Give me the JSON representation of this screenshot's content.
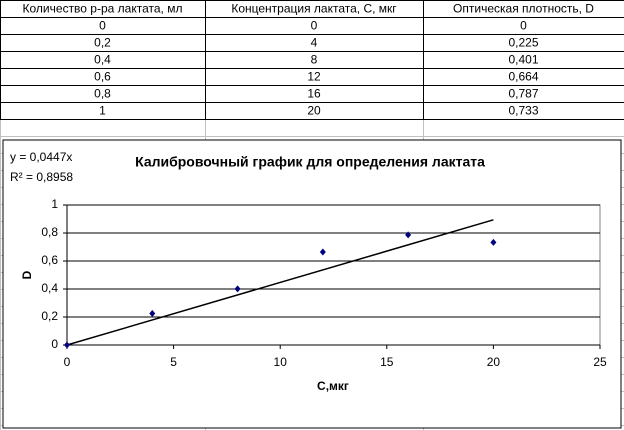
{
  "table": {
    "header": [
      "Количество р-ра лактата, мл",
      "Концентрация лактата, С, мкг",
      "Оптическая плотность, D"
    ],
    "rows": [
      [
        "0",
        "0",
        "0"
      ],
      [
        "0,2",
        "4",
        "0,225"
      ],
      [
        "0,4",
        "8",
        "0,401"
      ],
      [
        "0,6",
        "12",
        "0,664"
      ],
      [
        "0,8",
        "16",
        "0,787"
      ],
      [
        "1",
        "20",
        "0,733"
      ]
    ]
  },
  "chart_data": {
    "type": "scatter",
    "title": "Калибровочный график для определения лактата",
    "x_label": "С,мкг",
    "y_label": "D",
    "x": [
      0,
      4,
      8,
      12,
      16,
      20
    ],
    "values": [
      0,
      0.225,
      0.401,
      0.664,
      0.787,
      0.733
    ],
    "color": "#000080",
    "trendline": {
      "slope": 0.0447,
      "label": "y = 0,0447x",
      "r2_label": "R² = 0,8958",
      "color": "#000000"
    },
    "xlim": [
      0,
      25
    ],
    "xticks": [
      0,
      5,
      10,
      15,
      20,
      25
    ],
    "ylim": [
      0,
      1
    ],
    "yticks": [
      0,
      {
        "value": 0.2,
        "label": "0,2"
      },
      {
        "value": 0.4,
        "label": "0,4"
      },
      {
        "value": 0.6,
        "label": "0,6"
      },
      {
        "value": 0.8,
        "label": "0,8"
      },
      1
    ],
    "grid": true
  }
}
